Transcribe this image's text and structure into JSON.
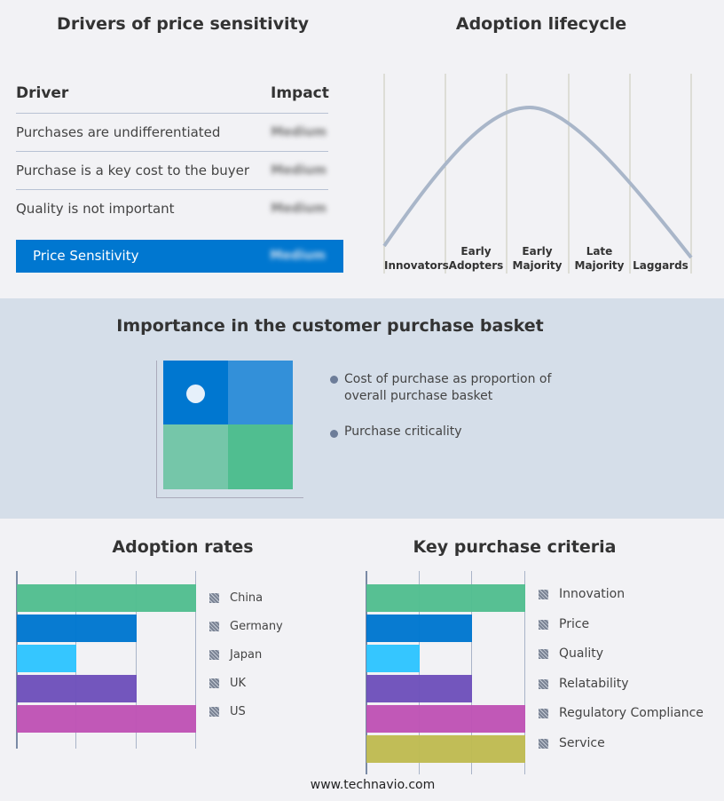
{
  "drivers": {
    "title": "Drivers of price sensitivity",
    "col_driver": "Driver",
    "col_impact": "Impact",
    "rows": [
      {
        "driver": "Purchases are undifferentiated",
        "impact": "Medium"
      },
      {
        "driver": "Purchase is a key cost to the buyer",
        "impact": "Medium"
      },
      {
        "driver": "Quality is not important",
        "impact": "Medium"
      }
    ],
    "summary": {
      "label": "Price Sensitivity",
      "impact": "Medium"
    },
    "accent": "#0077d0"
  },
  "lifecycle": {
    "title": "Adoption lifecycle",
    "stages": [
      [
        "Innovators"
      ],
      [
        "Early",
        "Adopters"
      ],
      [
        "Early",
        "Majority"
      ],
      [
        "Late",
        "Majority"
      ],
      [
        "Laggards"
      ]
    ]
  },
  "basket": {
    "title": "Importance in the customer purchase basket",
    "legend": [
      "Cost of purchase as proportion of overall purchase basket",
      "Purchase criticality"
    ],
    "colors": [
      "#0077d0",
      "#3390d9",
      "#75c6a9",
      "#50be90"
    ]
  },
  "adoption": {
    "title": "Adoption rates",
    "scale_max": 3,
    "items": [
      {
        "label": "China",
        "value": 3,
        "color": "#52be90"
      },
      {
        "label": "Germany",
        "value": 2,
        "color": "#0077d0"
      },
      {
        "label": "Japan",
        "value": 1,
        "color": "#2ec4ff"
      },
      {
        "label": "UK",
        "value": 2,
        "color": "#6e51bb"
      },
      {
        "label": "US",
        "value": 3,
        "color": "#bf53b5"
      }
    ]
  },
  "criteria": {
    "title": "Key purchase criteria",
    "scale_max": 3,
    "items": [
      {
        "label": "Innovation",
        "value": 3,
        "color": "#52be90"
      },
      {
        "label": "Price",
        "value": 2,
        "color": "#0077d0"
      },
      {
        "label": "Quality",
        "value": 1,
        "color": "#2ec4ff"
      },
      {
        "label": "Relatability",
        "value": 2,
        "color": "#6e51bb"
      },
      {
        "label": "Regulatory Compliance",
        "value": 3,
        "color": "#bf53b5"
      },
      {
        "label": "Service",
        "value": 3,
        "color": "#bfbb52"
      }
    ]
  },
  "footer": "www.technavio.com"
}
